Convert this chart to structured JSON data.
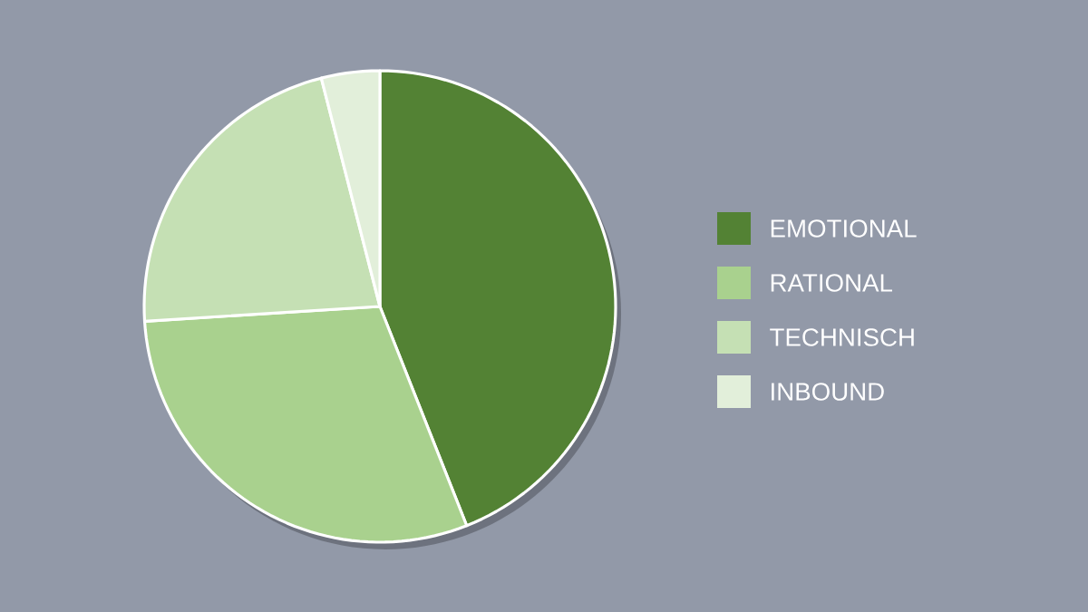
{
  "chart_data": {
    "type": "pie",
    "categories": [
      "EMOTIONAL",
      "RATIONAL",
      "TECHNISCH",
      "INBOUND"
    ],
    "values": [
      44,
      30,
      22,
      4
    ],
    "colors": [
      "#538234",
      "#a9d18e",
      "#c5e0b4",
      "#e2efda"
    ],
    "legend": "right"
  }
}
